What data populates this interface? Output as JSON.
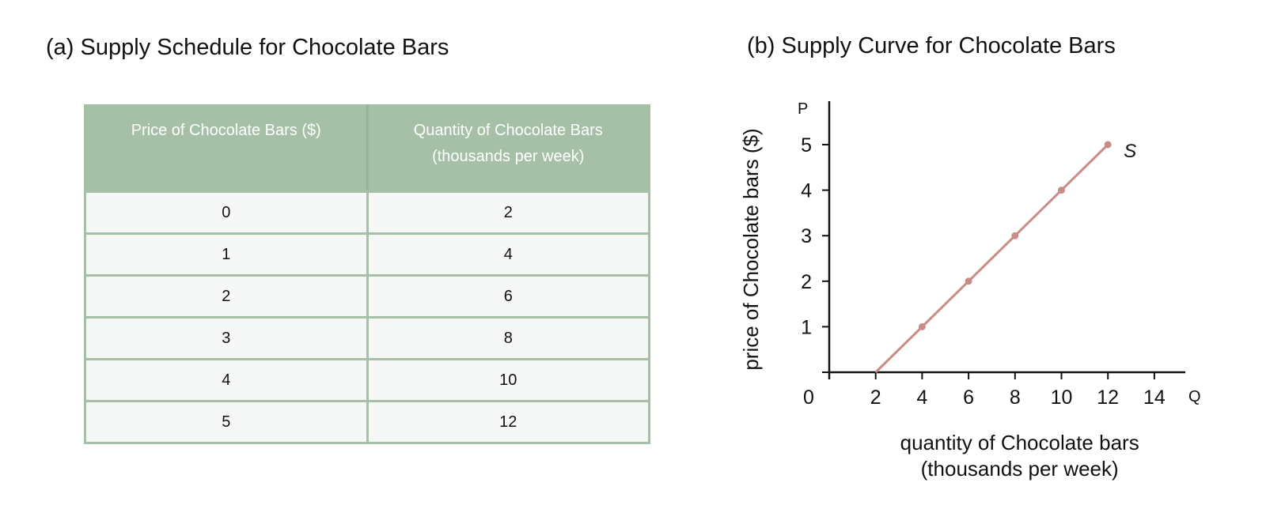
{
  "panel_a": {
    "title": "(a) Supply Schedule for Chocolate Bars",
    "header_col1": "Price of Chocolate Bars ($)",
    "header_col2_line1": "Quantity of Chocolate Bars",
    "header_col2_line2": "(thousands per week)",
    "rows": [
      {
        "price": "0",
        "quantity": "2"
      },
      {
        "price": "1",
        "quantity": "4"
      },
      {
        "price": "2",
        "quantity": "6"
      },
      {
        "price": "3",
        "quantity": "8"
      },
      {
        "price": "4",
        "quantity": "10"
      },
      {
        "price": "5",
        "quantity": "12"
      }
    ]
  },
  "panel_b": {
    "title": "(b) Supply Curve for Chocolate Bars"
  },
  "chart_data": [
    {
      "type": "table",
      "title": "(a) Supply Schedule for Chocolate Bars",
      "columns": [
        "Price of Chocolate Bars ($)",
        "Quantity of Chocolate Bars (thousands per week)"
      ],
      "rows": [
        [
          0,
          2
        ],
        [
          1,
          4
        ],
        [
          2,
          6
        ],
        [
          3,
          8
        ],
        [
          4,
          10
        ],
        [
          5,
          12
        ]
      ]
    },
    {
      "type": "line",
      "title": "(b) Supply Curve for Chocolate Bars",
      "xlabel_line1": "quantity of Chocolate bars",
      "xlabel_line2": "(thousands per week)",
      "ylabel": "price of Chocolate bars ($)",
      "x_axis_letter": "Q",
      "y_axis_letter": "P",
      "origin_label": "0",
      "xlim": [
        0,
        16
      ],
      "ylim": [
        0,
        6
      ],
      "xticks": [
        2,
        4,
        6,
        8,
        10,
        12,
        14
      ],
      "yticks": [
        1,
        2,
        3,
        4,
        5
      ],
      "grid": false,
      "line_color": "#c98c87",
      "series": [
        {
          "name": "S",
          "x": [
            2,
            4,
            6,
            8,
            10,
            12
          ],
          "y": [
            0,
            1,
            2,
            3,
            4,
            5
          ],
          "markers": [
            false,
            true,
            true,
            true,
            true,
            true
          ]
        }
      ]
    }
  ]
}
